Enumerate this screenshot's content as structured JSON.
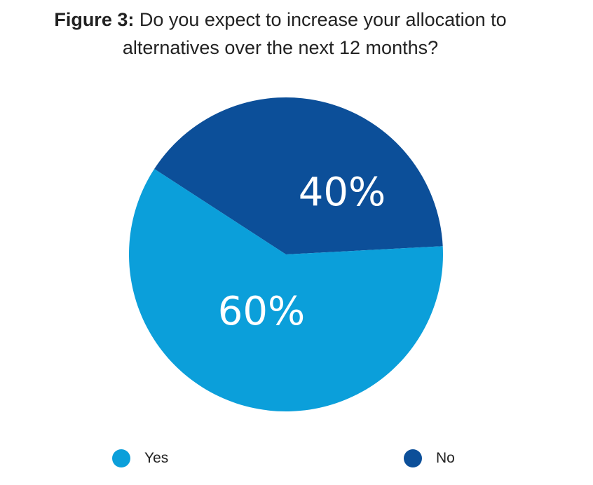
{
  "chart_data": {
    "type": "pie",
    "title_lead": "Figure 3:",
    "title_line1": "Do you expect to increase your allocation to",
    "title_line2": "alternatives over the next 12 months?",
    "slices": [
      {
        "name": "Yes",
        "value": 60,
        "label": "60%",
        "color": "#0b9fda"
      },
      {
        "name": "No",
        "value": 40,
        "label": "40%",
        "color": "#0c4f99"
      }
    ],
    "legend_position": "bottom"
  }
}
